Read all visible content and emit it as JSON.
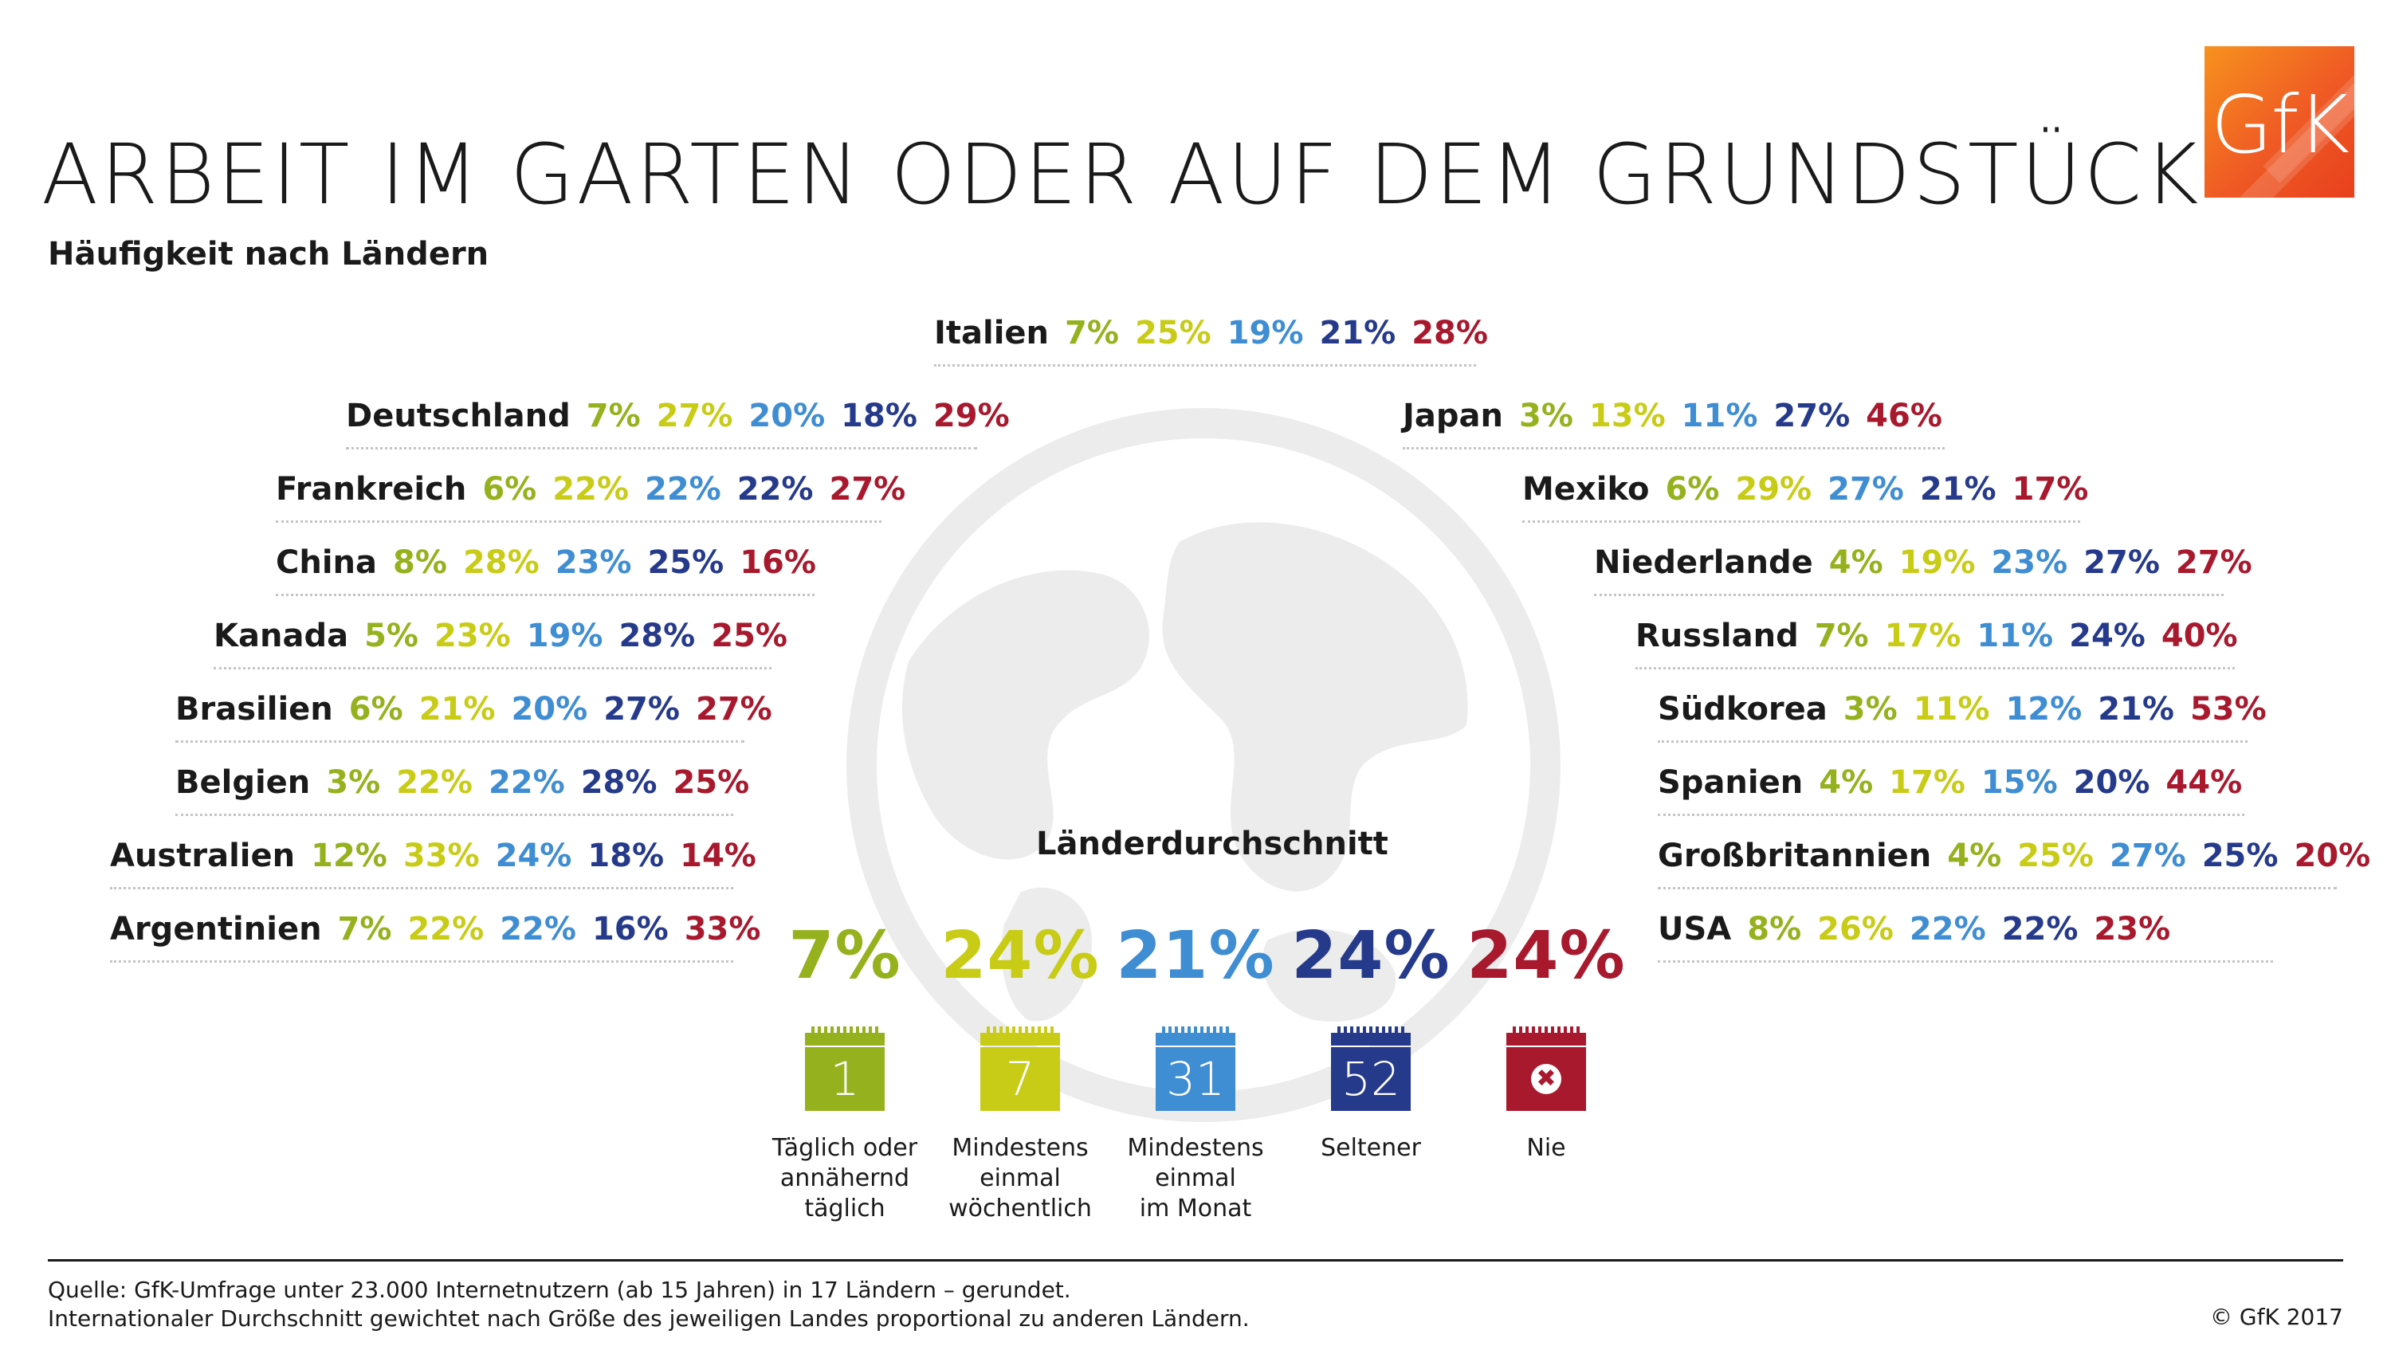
{
  "header": {
    "title": "ARBEIT IM GARTEN ODER AUF DEM GRUNDSTÜCK",
    "subtitle": "Häufigkeit nach Ländern",
    "logo_text": "GfK"
  },
  "colors": {
    "taeglich": "#95b21e",
    "woechentlich": "#c8cc16",
    "monatlich": "#3f8dd2",
    "seltener": "#263a8c",
    "nie": "#a8192e",
    "globe": "#eeeeee",
    "logo": "#ef5a24"
  },
  "chart_data": {
    "type": "table",
    "title": "ARBEIT IM GARTEN ODER AUF DEM GRUNDSTÜCK",
    "subtitle": "Häufigkeit nach Ländern",
    "categories": [
      "Täglich oder annähernd täglich",
      "Mindestens einmal wöchentlich",
      "Mindestens einmal im Monat",
      "Seltener",
      "Nie"
    ],
    "rows": [
      {
        "country": "Italien",
        "values": [
          "7%",
          "25%",
          "19%",
          "21%",
          "28%"
        ]
      },
      {
        "country": "Deutschland",
        "values": [
          "7%",
          "27%",
          "20%",
          "18%",
          "29%"
        ]
      },
      {
        "country": "Frankreich",
        "values": [
          "6%",
          "22%",
          "22%",
          "22%",
          "27%"
        ]
      },
      {
        "country": "China",
        "values": [
          "8%",
          "28%",
          "23%",
          "25%",
          "16%"
        ]
      },
      {
        "country": "Kanada",
        "values": [
          "5%",
          "23%",
          "19%",
          "28%",
          "25%"
        ]
      },
      {
        "country": "Brasilien",
        "values": [
          "6%",
          "21%",
          "20%",
          "27%",
          "27%"
        ]
      },
      {
        "country": "Belgien",
        "values": [
          "3%",
          "22%",
          "22%",
          "28%",
          "25%"
        ]
      },
      {
        "country": "Australien",
        "values": [
          "12%",
          "33%",
          "24%",
          "18%",
          "14%"
        ]
      },
      {
        "country": "Argentinien",
        "values": [
          "7%",
          "22%",
          "22%",
          "16%",
          "33%"
        ]
      },
      {
        "country": "Japan",
        "values": [
          "3%",
          "13%",
          "11%",
          "27%",
          "46%"
        ]
      },
      {
        "country": "Mexiko",
        "values": [
          "6%",
          "29%",
          "27%",
          "21%",
          "17%"
        ]
      },
      {
        "country": "Niederlande",
        "values": [
          "4%",
          "19%",
          "23%",
          "27%",
          "27%"
        ]
      },
      {
        "country": "Russland",
        "values": [
          "7%",
          "17%",
          "11%",
          "24%",
          "40%"
        ]
      },
      {
        "country": "Südkorea",
        "values": [
          "3%",
          "11%",
          "12%",
          "21%",
          "53%"
        ]
      },
      {
        "country": "Spanien",
        "values": [
          "4%",
          "17%",
          "15%",
          "20%",
          "44%"
        ]
      },
      {
        "country": "Großbritannien",
        "values": [
          "4%",
          "25%",
          "27%",
          "25%",
          "20%"
        ]
      },
      {
        "country": "USA",
        "values": [
          "8%",
          "26%",
          "22%",
          "22%",
          "23%"
        ]
      }
    ],
    "average": {
      "label": "Länderdurchschnitt",
      "values": [
        "7%",
        "24%",
        "21%",
        "24%",
        "24%"
      ]
    }
  },
  "legend": [
    {
      "icon": "calendar-1-icon",
      "icon_text": "1",
      "lines": [
        "Täglich oder",
        "annähernd",
        "täglich"
      ]
    },
    {
      "icon": "calendar-7-icon",
      "icon_text": "7",
      "lines": [
        "Mindestens",
        "einmal",
        "wöchentlich"
      ]
    },
    {
      "icon": "calendar-31-icon",
      "icon_text": "31",
      "lines": [
        "Mindestens",
        "einmal",
        "im Monat"
      ]
    },
    {
      "icon": "calendar-52-icon",
      "icon_text": "52",
      "lines": [
        "Seltener"
      ]
    },
    {
      "icon": "calendar-never-icon",
      "icon_text": "",
      "lines": [
        "Nie"
      ]
    }
  ],
  "footer": {
    "source": "Quelle: GfK-Umfrage unter 23.000 Internetnutzern (ab 15 Jahren) in 17 Ländern – gerundet.",
    "note": "Internationaler Durchschnitt gewichtet nach Größe des jeweiligen Landes proportional zu anderen Ländern.",
    "copyright": "© GfK 2017"
  }
}
